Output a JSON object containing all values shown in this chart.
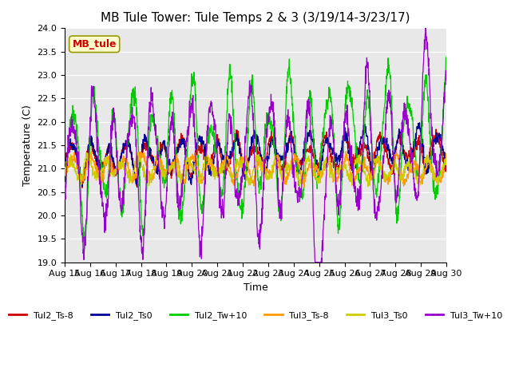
{
  "title": "MB Tule Tower: Tule Temps 2 & 3 (3/19/14-3/23/17)",
  "xlabel": "Time",
  "ylabel": "Temperature (C)",
  "ylim": [
    19.0,
    24.0
  ],
  "yticks": [
    19.0,
    19.5,
    20.0,
    20.5,
    21.0,
    21.5,
    22.0,
    22.5,
    23.0,
    23.5,
    24.0
  ],
  "xlim": [
    0,
    15
  ],
  "xtick_labels": [
    "Aug 15",
    "Aug 16",
    "Aug 17",
    "Aug 18",
    "Aug 19",
    "Aug 20",
    "Aug 21",
    "Aug 22",
    "Aug 23",
    "Aug 24",
    "Aug 25",
    "Aug 26",
    "Aug 27",
    "Aug 28",
    "Aug 29",
    "Aug 30"
  ],
  "legend_labels": [
    "Tul2_Ts-8",
    "Tul2_Ts0",
    "Tul2_Tw+10",
    "Tul3_Ts-8",
    "Tul3_Ts0",
    "Tul3_Tw+10"
  ],
  "legend_colors": [
    "#cc0000",
    "#000099",
    "#00cc00",
    "#ff9900",
    "#cccc00",
    "#9900cc"
  ],
  "annotation_text": "MB_tule",
  "annotation_color": "#cc0000",
  "background_plot": "#e8e8e8",
  "background_fig": "#ffffff",
  "grid_color": "#ffffff",
  "title_fontsize": 11,
  "axis_fontsize": 9,
  "tick_fontsize": 8
}
